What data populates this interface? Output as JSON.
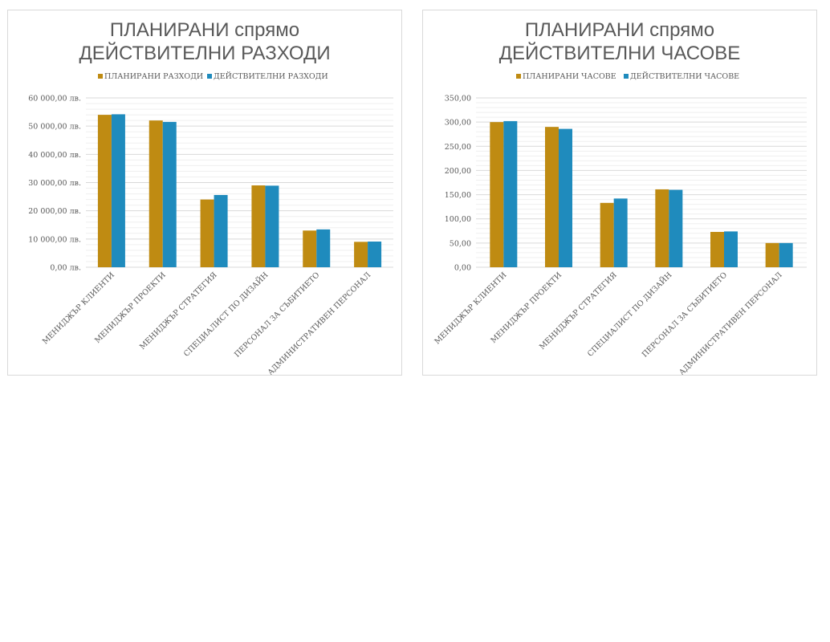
{
  "colors": {
    "planned": "#BF8B12",
    "actual": "#1F8BBD",
    "text": "#595959"
  },
  "chart_data": [
    {
      "type": "bar",
      "title_lines": [
        "ПЛАНИРАНИ спрямо",
        "ДЕЙСТВИТЕЛНИ РАЗХОДИ"
      ],
      "categories": [
        "МЕНИДЖЪР КЛИЕНТИ",
        "МЕНИДЖЪР ПРОЕКТИ",
        "МЕНИДЖЪР СТРАТЕГИЯ",
        "СПЕЦИАЛИСТ ПО ДИЗАЙН",
        "ПЕРСОНАЛ ЗА СЪБИТИЕТО",
        "АДМИНИСТРАТИВЕН ПЕРСОНАЛ"
      ],
      "series": [
        {
          "name": "ПЛАНИРАНИ РАЗХОДИ",
          "color_key": "planned",
          "values": [
            54000,
            52000,
            24000,
            29000,
            13000,
            9000
          ]
        },
        {
          "name": "ДЕЙСТВИТЕЛНИ РАЗХОДИ",
          "color_key": "actual",
          "values": [
            54200,
            51500,
            25600,
            28900,
            13400,
            9100
          ]
        }
      ],
      "ylim": [
        0,
        60000
      ],
      "y_ticks": [
        0,
        10000,
        20000,
        30000,
        40000,
        50000,
        60000
      ],
      "y_tick_labels": [
        "0,00 лв.",
        "10 000,00 лв.",
        "20 000,00 лв.",
        "30 000,00 лв.",
        "40 000,00 лв.",
        "50 000,00 лв.",
        "60 000,00 лв."
      ],
      "minor_gridlines_per_major": 4,
      "legend_position": "top"
    },
    {
      "type": "bar",
      "title_lines": [
        "ПЛАНИРАНИ спрямо",
        "ДЕЙСТВИТЕЛНИ ЧАСОВЕ"
      ],
      "categories": [
        "МЕНИДЖЪР КЛИЕНТИ",
        "МЕНИДЖЪР ПРОЕКТИ",
        "МЕНИДЖЪР СТРАТЕГИЯ",
        "СПЕЦИАЛИСТ ПО ДИЗАЙН",
        "ПЕРСОНАЛ ЗА СЪБИТИЕТО",
        "АДМИНИСТРАТИВЕН ПЕРСОНАЛ"
      ],
      "series": [
        {
          "name": "ПЛАНИРАНИ ЧАСОВЕ",
          "color_key": "planned",
          "values": [
            300,
            290,
            133,
            161,
            73,
            50
          ]
        },
        {
          "name": "ДЕЙСТВИТЕЛНИ ЧАСОВЕ",
          "color_key": "actual",
          "values": [
            302,
            286,
            142,
            160,
            74,
            50
          ]
        }
      ],
      "ylim": [
        0,
        350
      ],
      "y_ticks": [
        0,
        50,
        100,
        150,
        200,
        250,
        300,
        350
      ],
      "y_tick_labels": [
        "0,00",
        "50,00",
        "100,00",
        "150,00",
        "200,00",
        "250,00",
        "300,00",
        "350,00"
      ],
      "minor_gridlines_per_major": 4,
      "legend_position": "top"
    }
  ]
}
